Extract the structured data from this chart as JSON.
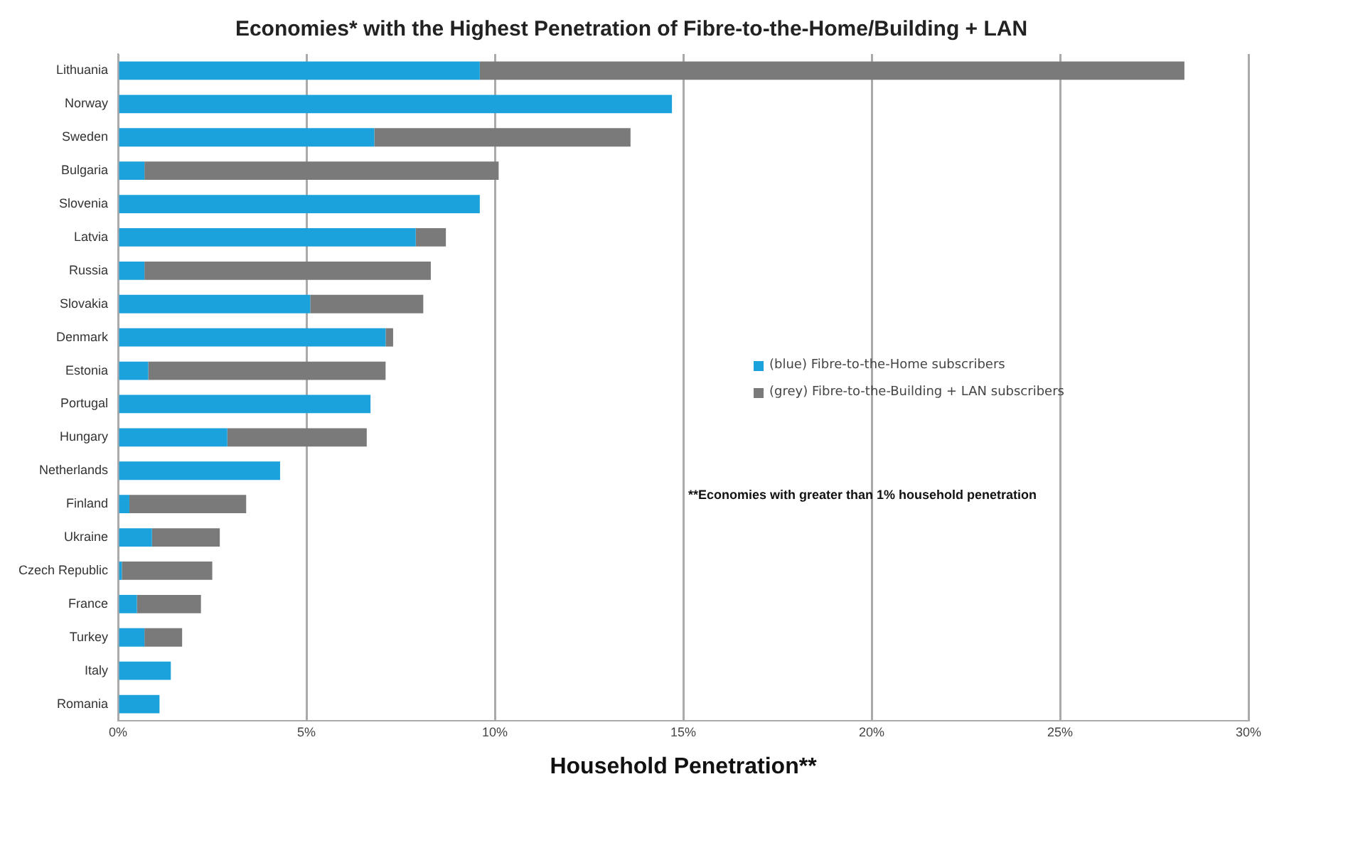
{
  "chart_data": {
    "type": "bar",
    "orientation": "horizontal",
    "stacked": true,
    "title": "Economies* with the Highest Penetration of Fibre-to-the-Home/Building + LAN",
    "xlabel": "Household Penetration**",
    "categories": [
      "Lithuania",
      "Norway",
      "Sweden",
      "Bulgaria",
      "Slovenia",
      "Latvia",
      "Russia",
      "Slovakia",
      "Denmark",
      "Estonia",
      "Portugal",
      "Hungary",
      "Netherlands",
      "Finland",
      "Ukraine",
      "Czech Republic",
      "France",
      "Turkey",
      "Italy",
      "Romania"
    ],
    "series": [
      {
        "name": "(blue) Fibre-to-the-Home subscribers",
        "color": "#1ba1dc",
        "values": [
          9.6,
          14.7,
          6.8,
          0.7,
          9.6,
          7.9,
          0.7,
          5.1,
          7.1,
          0.8,
          6.7,
          2.9,
          4.3,
          0.3,
          0.9,
          0.1,
          0.5,
          0.7,
          1.4,
          1.1
        ]
      },
      {
        "name": "(grey) Fibre-to-the-Building + LAN subscribers",
        "color": "#7a7a7a",
        "values": [
          18.7,
          0,
          6.8,
          9.4,
          0,
          0.8,
          7.6,
          3.0,
          0.2,
          6.3,
          0,
          3.7,
          0,
          3.1,
          1.8,
          2.4,
          1.7,
          1.0,
          0,
          0
        ]
      }
    ],
    "xlim": [
      0,
      30
    ],
    "xticks": [
      {
        "value": 0,
        "label": "0%"
      },
      {
        "value": 5,
        "label": "5%"
      },
      {
        "value": 10,
        "label": "10%"
      },
      {
        "value": 15,
        "label": "15%"
      },
      {
        "value": 20,
        "label": "20%"
      },
      {
        "value": 25,
        "label": "25%"
      },
      {
        "value": 30,
        "label": "30%"
      }
    ],
    "grid": "x",
    "legend": "right",
    "annotations": [
      "**Economies with greater than 1% household penetration"
    ]
  }
}
